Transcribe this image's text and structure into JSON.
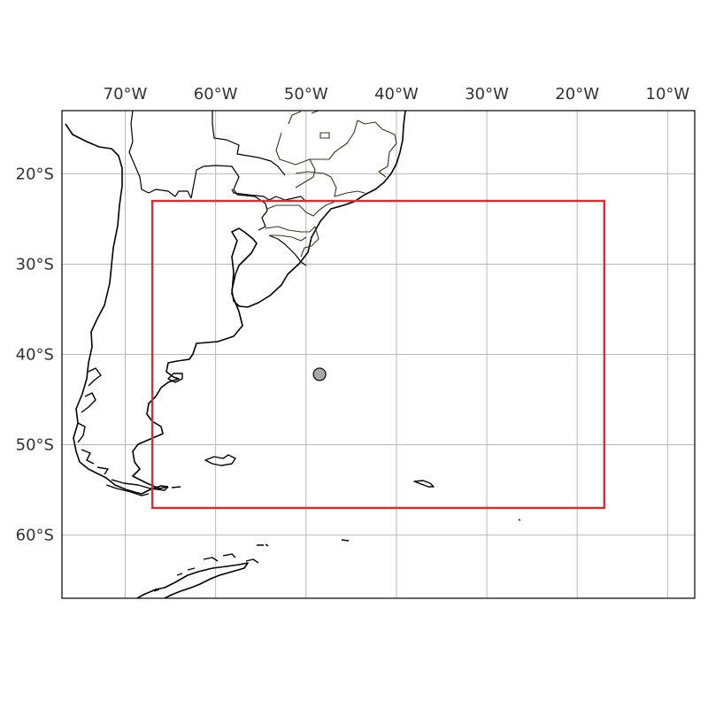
{
  "map": {
    "projection": "PlateCarree",
    "extent": {
      "lon": [
        -77,
        -7
      ],
      "lat": [
        -67,
        -13
      ]
    },
    "gridlines": {
      "lon": [
        -70,
        -60,
        -50,
        -40,
        -30,
        -20,
        -10
      ],
      "lat": [
        -20,
        -30,
        -40,
        -50,
        -60
      ]
    },
    "lon_labels": [
      "70°W",
      "60°W",
      "50°W",
      "40°W",
      "30°W",
      "20°W",
      "10°W"
    ],
    "lat_labels": [
      "20°S",
      "30°S",
      "40°S",
      "50°S",
      "60°S"
    ],
    "region_box": {
      "lon": [
        -67,
        -17
      ],
      "lat": [
        -57,
        -23
      ],
      "color": "#c0393b"
    },
    "marker": {
      "lon": -48.5,
      "lat": -42.2,
      "fill": "#a8a8a8",
      "stroke": "#000000"
    },
    "colors": {
      "land_outline": "#000000",
      "state_outline": "#2e3a20",
      "grid": "#b8b8b8",
      "frame": "#000000"
    }
  }
}
